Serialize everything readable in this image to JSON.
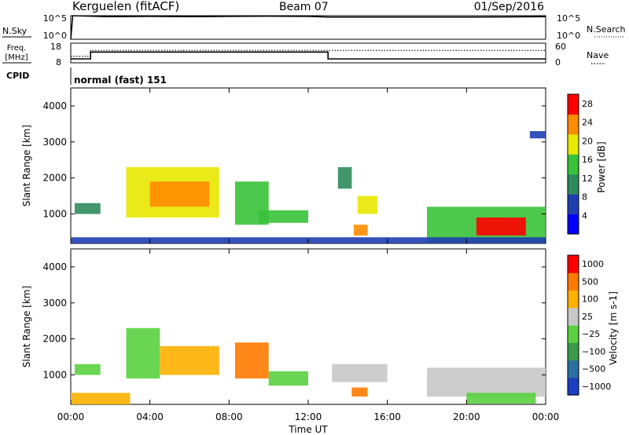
{
  "header": {
    "station": "Kerguelen (fitACF)",
    "beam": "Beam 07",
    "date": "01/Sep/2016"
  },
  "noise_panel": {
    "left_label": "N.Sky",
    "left_ticks": [
      "10^5",
      "10^0"
    ],
    "right_label": "N.Search",
    "right_ticks": [
      "10^5",
      "10^0"
    ]
  },
  "freq_panel": {
    "left_label_line1": "Freq.",
    "left_label_line2": "[MHz]",
    "left_ticks": [
      "18",
      "8"
    ],
    "right_label": "Nave",
    "right_ticks": [
      "60",
      "0"
    ]
  },
  "cpid": {
    "label": "CPID",
    "mode": "normal (fast) 151"
  },
  "chart_data": [
    {
      "type": "line",
      "panel": "noise",
      "x_unit": "hours UT",
      "x": [
        0,
        0.1,
        2,
        4,
        6,
        8,
        10,
        12,
        13,
        16,
        20,
        24
      ],
      "series": [
        {
          "name": "N.Sky",
          "values": [
            1,
            100000,
            60000,
            70000,
            60000,
            70000,
            80000,
            70000,
            50000,
            50000,
            50000,
            60000
          ]
        }
      ],
      "yscale": "log",
      "ylim": [
        1,
        100000
      ]
    },
    {
      "type": "line",
      "panel": "frequency",
      "x_unit": "hours UT",
      "series": [
        {
          "name": "Freq.",
          "x": [
            0,
            1,
            1,
            13,
            13,
            24
          ],
          "values": [
            10,
            10,
            13.5,
            13.5,
            10,
            10
          ]
        },
        {
          "name": "Nave",
          "x": [
            0,
            1,
            1,
            24
          ],
          "values": [
            20,
            20,
            38,
            38
          ]
        }
      ],
      "ylim": [
        8,
        18
      ],
      "y2lim": [
        0,
        60
      ]
    },
    {
      "type": "heatmap",
      "panel": "power",
      "xlabel": "",
      "ylabel": "Slant Range [km]",
      "x_ticks": [
        "00:00",
        "04:00",
        "08:00",
        "12:00",
        "16:00",
        "20:00",
        "00:00"
      ],
      "y_ticks": [
        1000,
        2000,
        3000,
        4000
      ],
      "xlim": [
        0,
        24
      ],
      "ylim": [
        180,
        4500
      ],
      "colorbar": {
        "label": "Power [dB]",
        "ticks": [
          4,
          8,
          12,
          16,
          20,
          24,
          28
        ],
        "range": [
          0,
          30
        ],
        "colors": [
          "#0000ff",
          "#1f3fb0",
          "#2f8a5c",
          "#38c238",
          "#e8e800",
          "#ff8c00",
          "#ff0000"
        ]
      },
      "regions": [
        {
          "t0": 0.2,
          "t1": 1.5,
          "r0": 1000,
          "r1": 1300,
          "value": 10
        },
        {
          "t0": 2.8,
          "t1": 7.5,
          "r0": 900,
          "r1": 2300,
          "value": 18
        },
        {
          "t0": 4.0,
          "t1": 7.0,
          "r0": 1200,
          "r1": 1900,
          "value": 23
        },
        {
          "t0": 8.3,
          "t1": 10.0,
          "r0": 700,
          "r1": 1900,
          "value": 15
        },
        {
          "t0": 9.5,
          "t1": 12.0,
          "r0": 750,
          "r1": 1100,
          "value": 17
        },
        {
          "t0": 13.5,
          "t1": 14.2,
          "r0": 1700,
          "r1": 2300,
          "value": 10
        },
        {
          "t0": 14.3,
          "t1": 15.0,
          "r0": 400,
          "r1": 700,
          "value": 24
        },
        {
          "t0": 14.5,
          "t1": 15.5,
          "r0": 1000,
          "r1": 1500,
          "value": 19
        },
        {
          "t0": 18.0,
          "t1": 24.0,
          "r0": 200,
          "r1": 1200,
          "value": 14
        },
        {
          "t0": 20.5,
          "t1": 23.0,
          "r0": 400,
          "r1": 900,
          "value": 27
        },
        {
          "t0": 23.2,
          "t1": 24.0,
          "r0": 3100,
          "r1": 3300,
          "value": 8
        },
        {
          "t0": 0.0,
          "t1": 24.0,
          "r0": 180,
          "r1": 350,
          "value": 6
        }
      ]
    },
    {
      "type": "heatmap",
      "panel": "velocity",
      "xlabel": "Time UT",
      "ylabel": "Slant Range [km]",
      "x_ticks": [
        "00:00",
        "04:00",
        "08:00",
        "12:00",
        "16:00",
        "20:00",
        "00:00"
      ],
      "y_ticks": [
        1000,
        2000,
        3000,
        4000
      ],
      "xlim": [
        0,
        24
      ],
      "ylim": [
        180,
        4500
      ],
      "colorbar": {
        "label": "Velocity [m s-1]",
        "ticks": [
          "1000",
          "500",
          "100",
          "25",
          "−25",
          "−100",
          "−500",
          "−1000"
        ],
        "colors": [
          "#1a3fc0",
          "#2d6f9e",
          "#3a9a4a",
          "#59d040",
          "#c8c8c8",
          "#ffb000",
          "#ff7a00",
          "#ff0000"
        ]
      },
      "regions": [
        {
          "t0": 0.2,
          "t1": 1.5,
          "r0": 1000,
          "r1": 1300,
          "value": "#59d040"
        },
        {
          "t0": 2.8,
          "t1": 4.5,
          "r0": 900,
          "r1": 2300,
          "value": "#59d040"
        },
        {
          "t0": 4.5,
          "t1": 7.5,
          "r0": 1000,
          "r1": 1800,
          "value": "#ffb000"
        },
        {
          "t0": 8.3,
          "t1": 10.0,
          "r0": 900,
          "r1": 1900,
          "value": "#ff7a00"
        },
        {
          "t0": 10.0,
          "t1": 12.0,
          "r0": 700,
          "r1": 1100,
          "value": "#59d040"
        },
        {
          "t0": 14.2,
          "t1": 15.0,
          "r0": 400,
          "r1": 650,
          "value": "#ff7a00"
        },
        {
          "t0": 13.2,
          "t1": 16.0,
          "r0": 800,
          "r1": 1300,
          "value": "#c8c8c8"
        },
        {
          "t0": 18.0,
          "t1": 24.0,
          "r0": 400,
          "r1": 1200,
          "value": "#c8c8c8"
        },
        {
          "t0": 20.0,
          "t1": 23.5,
          "r0": 200,
          "r1": 500,
          "value": "#59d040"
        },
        {
          "t0": 0.0,
          "t1": 3.0,
          "r0": 180,
          "r1": 500,
          "value": "#ffb000"
        }
      ]
    }
  ]
}
